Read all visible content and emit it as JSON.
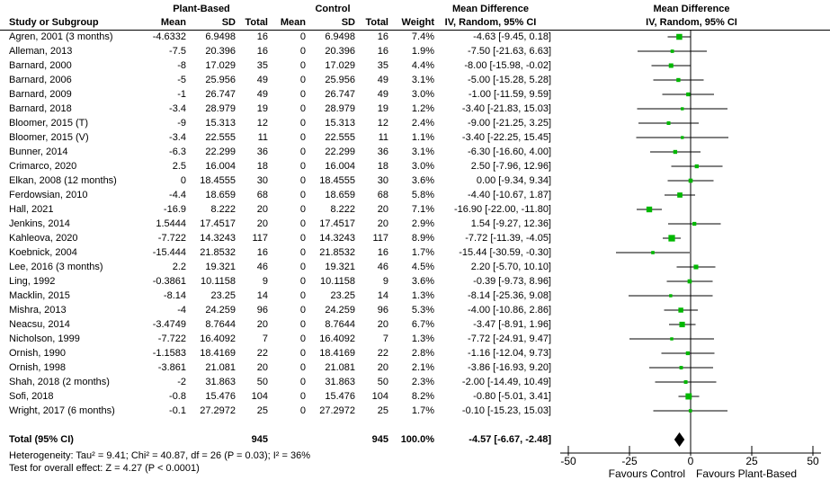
{
  "header": {
    "study": "Study or Subgroup",
    "group1": "Plant-Based",
    "group2": "Control",
    "mean": "Mean",
    "sd": "SD",
    "total": "Total",
    "weight": "Weight",
    "md_title": "Mean Difference",
    "md_subtitle": "IV, Random, 95% CI"
  },
  "chart_data": {
    "type": "scatter",
    "subtype": "forest-plot-mean-difference",
    "xlim": [
      -50,
      50
    ],
    "x_ticks": [
      -50,
      -25,
      0,
      25,
      50
    ],
    "x_left_label": "Favours Control",
    "x_right_label": "Favours Plant-Based",
    "marker_color": "#00b800",
    "diamond_color": "#000000",
    "line_color": "#000000",
    "studies": [
      {
        "name": "Agren, 2001 (3 months)",
        "m1": "-4.6332",
        "sd1": "6.9498",
        "n1": "16",
        "m2": "0",
        "sd2": "6.9498",
        "n2": "16",
        "wt": "7.4%",
        "md": "-4.63 [-9.45, 0.18]",
        "est": -4.63,
        "lo": -9.45,
        "hi": 0.18,
        "w": 7.4
      },
      {
        "name": "Alleman, 2013",
        "m1": "-7.5",
        "sd1": "20.396",
        "n1": "16",
        "m2": "0",
        "sd2": "20.396",
        "n2": "16",
        "wt": "1.9%",
        "md": "-7.50 [-21.63, 6.63]",
        "est": -7.5,
        "lo": -21.63,
        "hi": 6.63,
        "w": 1.9
      },
      {
        "name": "Barnard, 2000",
        "m1": "-8",
        "sd1": "17.029",
        "n1": "35",
        "m2": "0",
        "sd2": "17.029",
        "n2": "35",
        "wt": "4.4%",
        "md": "-8.00 [-15.98, -0.02]",
        "est": -8,
        "lo": -15.98,
        "hi": -0.02,
        "w": 4.4
      },
      {
        "name": "Barnard, 2006",
        "m1": "-5",
        "sd1": "25.956",
        "n1": "49",
        "m2": "0",
        "sd2": "25.956",
        "n2": "49",
        "wt": "3.1%",
        "md": "-5.00 [-15.28, 5.28]",
        "est": -5,
        "lo": -15.28,
        "hi": 5.28,
        "w": 3.1
      },
      {
        "name": "Barnard, 2009",
        "m1": "-1",
        "sd1": "26.747",
        "n1": "49",
        "m2": "0",
        "sd2": "26.747",
        "n2": "49",
        "wt": "3.0%",
        "md": "-1.00 [-11.59, 9.59]",
        "est": -1,
        "lo": -11.59,
        "hi": 9.59,
        "w": 3.0
      },
      {
        "name": "Barnard, 2018",
        "m1": "-3.4",
        "sd1": "28.979",
        "n1": "19",
        "m2": "0",
        "sd2": "28.979",
        "n2": "19",
        "wt": "1.2%",
        "md": "-3.40 [-21.83, 15.03]",
        "est": -3.4,
        "lo": -21.83,
        "hi": 15.03,
        "w": 1.2
      },
      {
        "name": "Bloomer, 2015 (T)",
        "m1": "-9",
        "sd1": "15.313",
        "n1": "12",
        "m2": "0",
        "sd2": "15.313",
        "n2": "12",
        "wt": "2.4%",
        "md": "-9.00 [-21.25, 3.25]",
        "est": -9,
        "lo": -21.25,
        "hi": 3.25,
        "w": 2.4
      },
      {
        "name": "Bloomer, 2015 (V)",
        "m1": "-3.4",
        "sd1": "22.555",
        "n1": "11",
        "m2": "0",
        "sd2": "22.555",
        "n2": "11",
        "wt": "1.1%",
        "md": "-3.40 [-22.25, 15.45]",
        "est": -3.4,
        "lo": -22.25,
        "hi": 15.45,
        "w": 1.1
      },
      {
        "name": "Bunner, 2014",
        "m1": "-6.3",
        "sd1": "22.299",
        "n1": "36",
        "m2": "0",
        "sd2": "22.299",
        "n2": "36",
        "wt": "3.1%",
        "md": "-6.30 [-16.60, 4.00]",
        "est": -6.3,
        "lo": -16.6,
        "hi": 4.0,
        "w": 3.1
      },
      {
        "name": "Crimarco, 2020",
        "m1": "2.5",
        "sd1": "16.004",
        "n1": "18",
        "m2": "0",
        "sd2": "16.004",
        "n2": "18",
        "wt": "3.0%",
        "md": "2.50 [-7.96, 12.96]",
        "est": 2.5,
        "lo": -7.96,
        "hi": 12.96,
        "w": 3.0
      },
      {
        "name": "Elkan, 2008 (12 months)",
        "m1": "0",
        "sd1": "18.4555",
        "n1": "30",
        "m2": "0",
        "sd2": "18.4555",
        "n2": "30",
        "wt": "3.6%",
        "md": "0.00 [-9.34, 9.34]",
        "est": 0,
        "lo": -9.34,
        "hi": 9.34,
        "w": 3.6
      },
      {
        "name": "Ferdowsian, 2010",
        "m1": "-4.4",
        "sd1": "18.659",
        "n1": "68",
        "m2": "0",
        "sd2": "18.659",
        "n2": "68",
        "wt": "5.8%",
        "md": "-4.40 [-10.67, 1.87]",
        "est": -4.4,
        "lo": -10.67,
        "hi": 1.87,
        "w": 5.8
      },
      {
        "name": "Hall, 2021",
        "m1": "-16.9",
        "sd1": "8.222",
        "n1": "20",
        "m2": "0",
        "sd2": "8.222",
        "n2": "20",
        "wt": "7.1%",
        "md": "-16.90 [-22.00, -11.80]",
        "est": -16.9,
        "lo": -22.0,
        "hi": -11.8,
        "w": 7.1
      },
      {
        "name": "Jenkins, 2014",
        "m1": "1.5444",
        "sd1": "17.4517",
        "n1": "20",
        "m2": "0",
        "sd2": "17.4517",
        "n2": "20",
        "wt": "2.9%",
        "md": "1.54 [-9.27, 12.36]",
        "est": 1.54,
        "lo": -9.27,
        "hi": 12.36,
        "w": 2.9
      },
      {
        "name": "Kahleova, 2020",
        "m1": "-7.722",
        "sd1": "14.3243",
        "n1": "117",
        "m2": "0",
        "sd2": "14.3243",
        "n2": "117",
        "wt": "8.9%",
        "md": "-7.72 [-11.39, -4.05]",
        "est": -7.72,
        "lo": -11.39,
        "hi": -4.05,
        "w": 8.9
      },
      {
        "name": "Koebnick, 2004",
        "m1": "-15.444",
        "sd1": "21.8532",
        "n1": "16",
        "m2": "0",
        "sd2": "21.8532",
        "n2": "16",
        "wt": "1.7%",
        "md": "-15.44 [-30.59, -0.30]",
        "est": -15.44,
        "lo": -30.59,
        "hi": -0.3,
        "w": 1.7
      },
      {
        "name": "Lee, 2016 (3 months)",
        "m1": "2.2",
        "sd1": "19.321",
        "n1": "46",
        "m2": "0",
        "sd2": "19.321",
        "n2": "46",
        "wt": "4.5%",
        "md": "2.20 [-5.70, 10.10]",
        "est": 2.2,
        "lo": -5.7,
        "hi": 10.1,
        "w": 4.5
      },
      {
        "name": "Ling, 1992",
        "m1": "-0.3861",
        "sd1": "10.1158",
        "n1": "9",
        "m2": "0",
        "sd2": "10.1158",
        "n2": "9",
        "wt": "3.6%",
        "md": "-0.39 [-9.73, 8.96]",
        "est": -0.39,
        "lo": -9.73,
        "hi": 8.96,
        "w": 3.6
      },
      {
        "name": "Macklin, 2015",
        "m1": "-8.14",
        "sd1": "23.25",
        "n1": "14",
        "m2": "0",
        "sd2": "23.25",
        "n2": "14",
        "wt": "1.3%",
        "md": "-8.14 [-25.36, 9.08]",
        "est": -8.14,
        "lo": -25.36,
        "hi": 9.08,
        "w": 1.3
      },
      {
        "name": "Mishra, 2013",
        "m1": "-4",
        "sd1": "24.259",
        "n1": "96",
        "m2": "0",
        "sd2": "24.259",
        "n2": "96",
        "wt": "5.3%",
        "md": "-4.00 [-10.86, 2.86]",
        "est": -4,
        "lo": -10.86,
        "hi": 2.86,
        "w": 5.3
      },
      {
        "name": "Neacsu, 2014",
        "m1": "-3.4749",
        "sd1": "8.7644",
        "n1": "20",
        "m2": "0",
        "sd2": "8.7644",
        "n2": "20",
        "wt": "6.7%",
        "md": "-3.47 [-8.91, 1.96]",
        "est": -3.47,
        "lo": -8.91,
        "hi": 1.96,
        "w": 6.7
      },
      {
        "name": "Nicholson, 1999",
        "m1": "-7.722",
        "sd1": "16.4092",
        "n1": "7",
        "m2": "0",
        "sd2": "16.4092",
        "n2": "7",
        "wt": "1.3%",
        "md": "-7.72 [-24.91, 9.47]",
        "est": -7.72,
        "lo": -24.91,
        "hi": 9.47,
        "w": 1.3
      },
      {
        "name": "Ornish, 1990",
        "m1": "-1.1583",
        "sd1": "18.4169",
        "n1": "22",
        "m2": "0",
        "sd2": "18.4169",
        "n2": "22",
        "wt": "2.8%",
        "md": "-1.16 [-12.04, 9.73]",
        "est": -1.16,
        "lo": -12.04,
        "hi": 9.73,
        "w": 2.8
      },
      {
        "name": "Ornish, 1998",
        "m1": "-3.861",
        "sd1": "21.081",
        "n1": "20",
        "m2": "0",
        "sd2": "21.081",
        "n2": "20",
        "wt": "2.1%",
        "md": "-3.86 [-16.93, 9.20]",
        "est": -3.86,
        "lo": -16.93,
        "hi": 9.2,
        "w": 2.1
      },
      {
        "name": "Shah, 2018 (2 months)",
        "m1": "-2",
        "sd1": "31.863",
        "n1": "50",
        "m2": "0",
        "sd2": "31.863",
        "n2": "50",
        "wt": "2.3%",
        "md": "-2.00 [-14.49, 10.49]",
        "est": -2,
        "lo": -14.49,
        "hi": 10.49,
        "w": 2.3
      },
      {
        "name": "Sofi, 2018",
        "m1": "-0.8",
        "sd1": "15.476",
        "n1": "104",
        "m2": "0",
        "sd2": "15.476",
        "n2": "104",
        "wt": "8.2%",
        "md": "-0.80 [-5.01, 3.41]",
        "est": -0.8,
        "lo": -5.01,
        "hi": 3.41,
        "w": 8.2
      },
      {
        "name": "Wright, 2017 (6 months)",
        "m1": "-0.1",
        "sd1": "27.2972",
        "n1": "25",
        "m2": "0",
        "sd2": "27.2972",
        "n2": "25",
        "wt": "1.7%",
        "md": "-0.10 [-15.23, 15.03]",
        "est": -0.1,
        "lo": -15.23,
        "hi": 15.03,
        "w": 1.7
      }
    ],
    "total": {
      "label": "Total (95% CI)",
      "n1": "945",
      "n2": "945",
      "wt": "100.0%",
      "md": "-4.57 [-6.67, -2.48]",
      "est": -4.57,
      "lo": -6.67,
      "hi": -2.48
    }
  },
  "footnotes": {
    "heterogeneity": "Heterogeneity: Tau² = 9.41; Chi² = 40.87, df = 26 (P = 0.03); I² = 36%",
    "overall_effect": "Test for overall effect: Z = 4.27 (P < 0.0001)"
  }
}
